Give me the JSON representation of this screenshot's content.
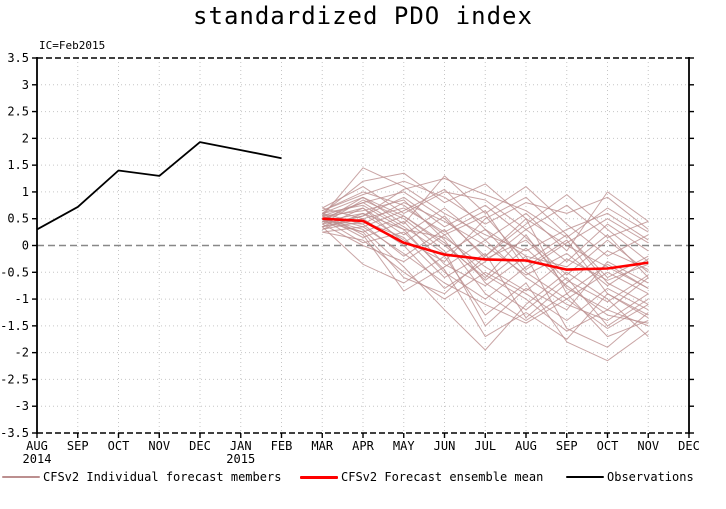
{
  "chart_data": {
    "type": "line",
    "title": "standardized PDO index",
    "annotation": "IC=Feb2015",
    "ylabel": "",
    "xlabel": "",
    "ylim": [
      -3.5,
      3.5
    ],
    "grid": true,
    "zero_line": true,
    "yticks": [
      {
        "v": 3.5,
        "label": "3.5"
      },
      {
        "v": 3.0,
        "label": "3"
      },
      {
        "v": 2.5,
        "label": "2.5"
      },
      {
        "v": 2.0,
        "label": "2"
      },
      {
        "v": 1.5,
        "label": "1.5"
      },
      {
        "v": 1.0,
        "label": "1"
      },
      {
        "v": 0.5,
        "label": "0.5"
      },
      {
        "v": 0.0,
        "label": "0"
      },
      {
        "v": -0.5,
        "label": "-0.5"
      },
      {
        "v": -1.0,
        "label": "-1"
      },
      {
        "v": -1.5,
        "label": "-1.5"
      },
      {
        "v": -2.0,
        "label": "-2"
      },
      {
        "v": -2.5,
        "label": "-2.5"
      },
      {
        "v": -3.0,
        "label": "-3"
      },
      {
        "v": -3.5,
        "label": "-3.5"
      }
    ],
    "months": [
      {
        "label": "AUG",
        "year": "2014"
      },
      {
        "label": "SEP"
      },
      {
        "label": "OCT"
      },
      {
        "label": "NOV"
      },
      {
        "label": "DEC"
      },
      {
        "label": "JAN",
        "year": "2015"
      },
      {
        "label": "FEB"
      },
      {
        "label": "MAR"
      },
      {
        "label": "APR"
      },
      {
        "label": "MAY"
      },
      {
        "label": "JUN"
      },
      {
        "label": "JUL"
      },
      {
        "label": "AUG"
      },
      {
        "label": "SEP"
      },
      {
        "label": "OCT"
      },
      {
        "label": "NOV"
      },
      {
        "label": "DEC"
      }
    ],
    "colors": {
      "member": "#bc8f8f",
      "mean": "#ff0000",
      "observations": "#000000",
      "grid": "#c6c6c6",
      "zero": "#888888",
      "frame": "#000000"
    },
    "observations": {
      "name": "Observations",
      "start_index": 0,
      "values": [
        0.3,
        0.72,
        1.4,
        1.3,
        1.93,
        1.78,
        1.63
      ]
    },
    "ensemble_mean": {
      "name": "CFSv2 Forecast ensemble mean",
      "start_index": 7,
      "values": [
        0.5,
        0.46,
        0.05,
        -0.17,
        -0.26,
        -0.28,
        -0.45,
        -0.43,
        -0.32
      ]
    },
    "members": {
      "name": "CFSv2 Individual forecast members",
      "start_index": 7,
      "values": [
        [
          0.55,
          1.45,
          1.1,
          0.6,
          0.2,
          -0.1,
          0.3,
          0.6,
          0.1
        ],
        [
          0.6,
          1.2,
          1.35,
          0.8,
          1.15,
          0.5,
          0.0,
          -0.4,
          -0.8
        ],
        [
          0.45,
          0.9,
          0.4,
          1.3,
          0.6,
          1.1,
          0.4,
          -0.2,
          0.2
        ],
        [
          0.5,
          0.8,
          1.0,
          0.5,
          -0.2,
          0.4,
          0.95,
          0.3,
          -0.3
        ],
        [
          0.35,
          0.7,
          0.2,
          0.7,
          0.1,
          0.6,
          -0.1,
          1.0,
          0.45
        ],
        [
          0.65,
          1.0,
          0.75,
          0.2,
          0.55,
          -0.3,
          0.2,
          -0.6,
          -0.2
        ],
        [
          0.4,
          0.55,
          0.9,
          0.35,
          0.75,
          0.15,
          -0.55,
          0.1,
          -0.5
        ],
        [
          0.55,
          0.35,
          0.65,
          1.05,
          0.3,
          -0.5,
          -1.0,
          -0.5,
          -0.9
        ],
        [
          0.3,
          0.6,
          0.1,
          -0.3,
          0.5,
          0.9,
          0.2,
          -0.7,
          -1.1
        ],
        [
          0.5,
          0.25,
          0.55,
          0.0,
          -0.6,
          0.2,
          -0.8,
          -1.2,
          -0.6
        ],
        [
          0.6,
          0.75,
          0.3,
          -0.5,
          -1.0,
          -0.4,
          0.1,
          -0.9,
          -1.3
        ],
        [
          0.45,
          0.4,
          -0.2,
          0.3,
          -0.7,
          -1.2,
          -0.6,
          -1.5,
          -1.0
        ],
        [
          0.7,
          0.5,
          0.0,
          -0.8,
          -0.3,
          0.3,
          -0.3,
          0.4,
          -0.1
        ],
        [
          0.25,
          0.1,
          -0.5,
          -1.0,
          -0.5,
          -0.9,
          -1.4,
          -0.8,
          -1.2
        ],
        [
          0.55,
          0.65,
          0.85,
          0.1,
          -0.9,
          -1.4,
          -0.9,
          -1.7,
          -1.4
        ],
        [
          0.35,
          -0.35,
          -0.7,
          -0.2,
          -1.3,
          -0.7,
          -1.8,
          -2.15,
          -1.6
        ],
        [
          0.5,
          0.3,
          -0.4,
          -1.2,
          -1.95,
          -1.1,
          -0.5,
          -1.0,
          -1.7
        ],
        [
          0.4,
          0.85,
          0.5,
          -0.1,
          -1.5,
          -0.8,
          -1.2,
          -0.3,
          -0.7
        ],
        [
          0.6,
          0.2,
          -0.85,
          -0.4,
          0.1,
          -0.6,
          -1.1,
          -1.4,
          -0.9
        ],
        [
          0.3,
          0.45,
          0.15,
          -0.6,
          -0.15,
          -1.35,
          -0.7,
          -0.1,
          -0.45
        ],
        [
          0.65,
          0.95,
          1.2,
          0.9,
          0.4,
          0.8,
          0.6,
          0.9,
          0.3
        ],
        [
          0.45,
          0.6,
          0.3,
          0.15,
          -0.4,
          -0.85,
          -0.25,
          -0.65,
          -0.35
        ],
        [
          0.55,
          0.15,
          0.45,
          -0.35,
          -0.75,
          -0.2,
          -1.55,
          -1.9,
          -1.25
        ],
        [
          0.35,
          0.5,
          0.7,
          0.25,
          0.65,
          -0.45,
          0.05,
          0.5,
          0.05
        ],
        [
          0.5,
          0.7,
          0.05,
          0.55,
          -0.25,
          0.1,
          -0.65,
          -1.05,
          -0.55
        ],
        [
          0.6,
          0.4,
          0.8,
          0.45,
          0.0,
          -0.55,
          -0.15,
          -0.75,
          -0.25
        ],
        [
          0.4,
          0.0,
          -0.3,
          0.2,
          -0.55,
          -1.0,
          -1.6,
          -1.2,
          -1.5
        ],
        [
          0.7,
          1.1,
          0.6,
          1.0,
          0.85,
          0.3,
          0.75,
          0.15,
          0.45
        ],
        [
          0.25,
          0.35,
          -0.15,
          -0.7,
          -1.1,
          -1.45,
          -1.0,
          -1.55,
          -1.1
        ],
        [
          0.55,
          0.8,
          0.35,
          -0.15,
          0.3,
          -0.2,
          -0.4,
          0.2,
          -0.6
        ],
        [
          0.45,
          0.25,
          -0.6,
          -0.9,
          -0.2,
          0.5,
          -0.9,
          -0.35,
          -0.8
        ],
        [
          0.6,
          0.9,
          0.55,
          0.05,
          -0.65,
          -0.05,
          -0.75,
          -1.3,
          -1.45
        ],
        [
          0.35,
          0.55,
          1.05,
          1.25,
          0.95,
          0.65,
          0.15,
          0.7,
          0.25
        ],
        [
          0.5,
          0.05,
          0.25,
          -0.45,
          -1.7,
          -1.25,
          -1.75,
          -0.9,
          -1.35
        ]
      ]
    },
    "legend": [
      {
        "label": "CFSv2 Individual forecast members",
        "color": "#bc8f8f",
        "thickness": 2
      },
      {
        "label": "CFSv2 Forecast ensemble mean",
        "color": "#ff0000",
        "thickness": 3
      },
      {
        "label": "Observations",
        "color": "#000000",
        "thickness": 2
      }
    ]
  }
}
